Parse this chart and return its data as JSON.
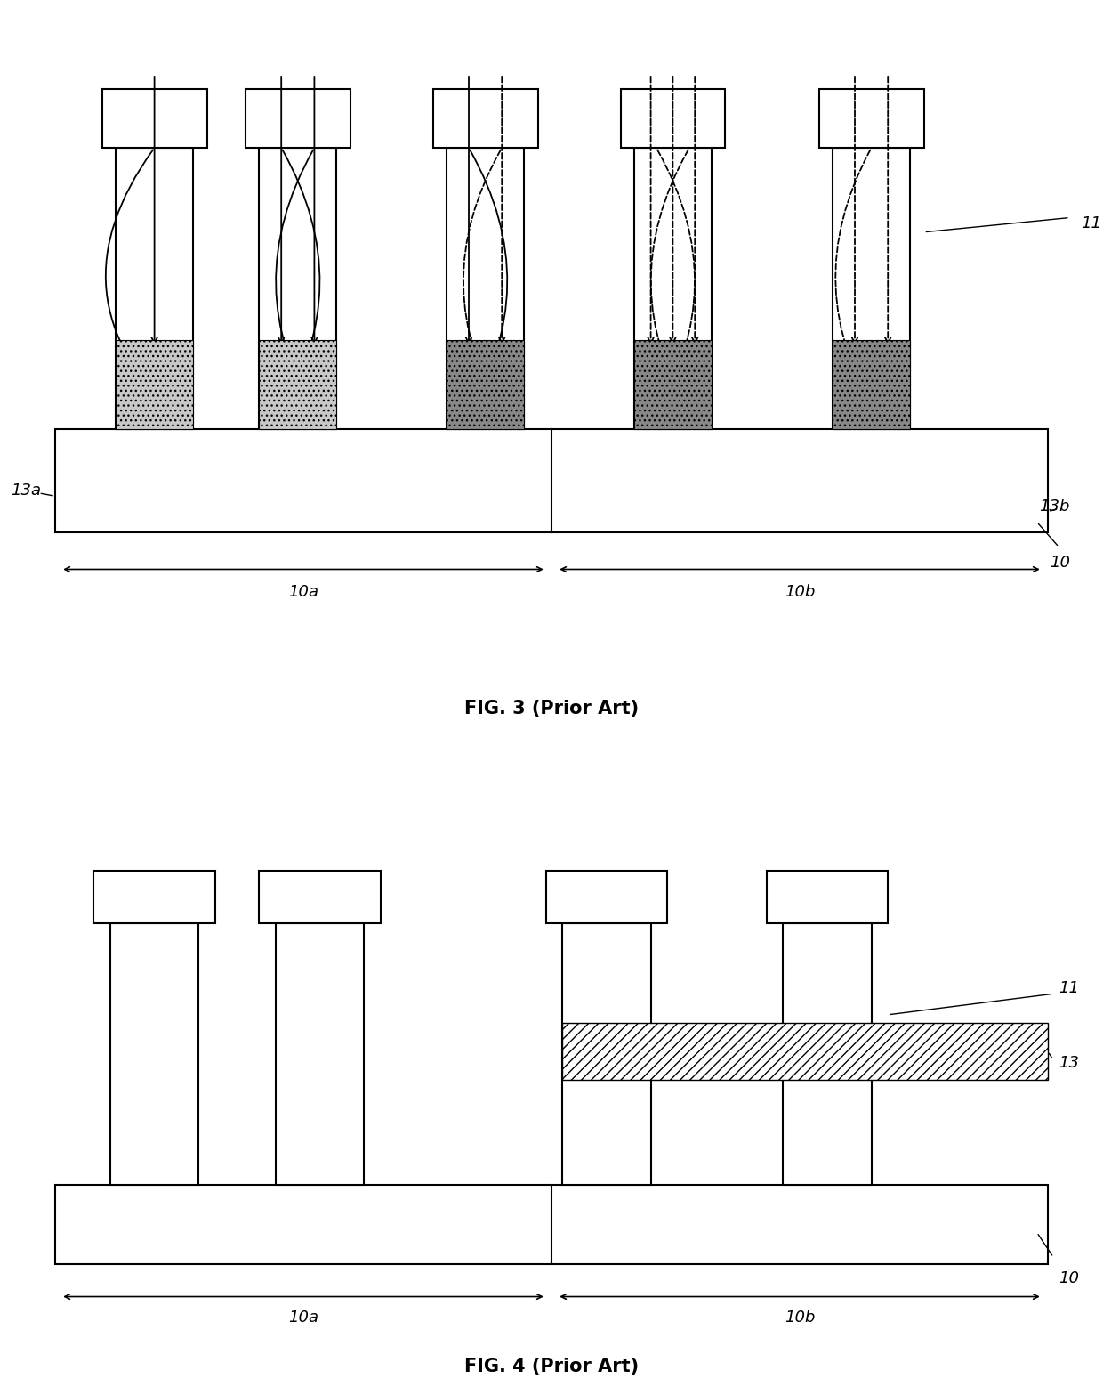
{
  "fig3": {
    "title": "FIG. 3 (Prior Art)",
    "label_10": "10",
    "label_10a": "10a",
    "label_10b": "10b",
    "label_13a": "13a",
    "label_13b": "13b",
    "label_11": "11",
    "lw": 1.5
  },
  "fig4": {
    "title": "FIG. 4 (Prior Art)",
    "label_10": "10",
    "label_10a": "10a",
    "label_10b": "10b",
    "label_13": "13",
    "label_11": "11",
    "lw": 1.5
  }
}
